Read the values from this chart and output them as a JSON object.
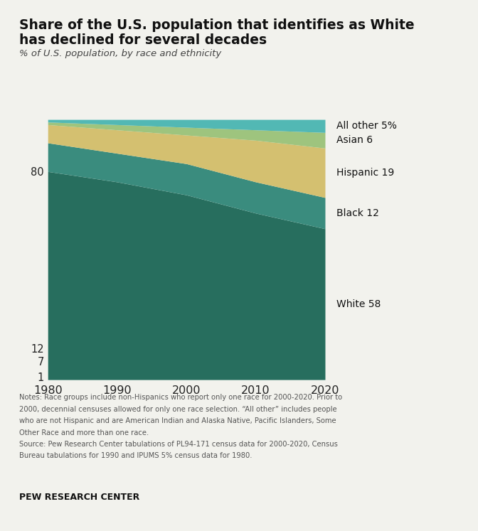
{
  "title_line1": "Share of the U.S. population that identifies as White",
  "title_line2": "has declined for several decades",
  "subtitle": "% of U.S. population, by race and ethnicity",
  "years": [
    1980,
    1990,
    2000,
    2010,
    2020
  ],
  "series": {
    "White": [
      80,
      76,
      71,
      64,
      58
    ],
    "Black": [
      11,
      11,
      12,
      12,
      12
    ],
    "Hispanic": [
      7,
      9,
      11,
      16,
      19
    ],
    "Asian": [
      1,
      2,
      3,
      4,
      6
    ],
    "All other": [
      1,
      2,
      3,
      4,
      5
    ]
  },
  "colors": {
    "White": "#276e5e",
    "Black": "#3a8c7e",
    "Hispanic": "#d4c070",
    "Asian": "#9ec47e",
    "All other": "#52b8b4"
  },
  "right_labels": {
    "All other": "All other 5%",
    "Asian": "Asian 6",
    "Hispanic": "Hispanic 19",
    "Black": "Black 12",
    "White": "White 58"
  },
  "left_yticks": [
    1,
    7,
    12,
    80
  ],
  "notes_line1": "Notes: Race groups include non-Hispanics who report only one race for 2000-2020. Prior to",
  "notes_line2": "2000, decennial censuses allowed for only one race selection. “All other” includes people",
  "notes_line3": "who are not Hispanic and are American Indian and Alaska Native, Pacific Islanders, Some",
  "notes_line4": "Other Race and more than one race.",
  "notes_line5": "Source: Pew Research Center tabulations of PL94-171 census data for 2000-2020, Census",
  "notes_line6": "Bureau tabulations for 1990 and IPUMS 5% census data for 1980.",
  "source_label": "PEW RESEARCH CENTER",
  "background_color": "#f2f2ed"
}
